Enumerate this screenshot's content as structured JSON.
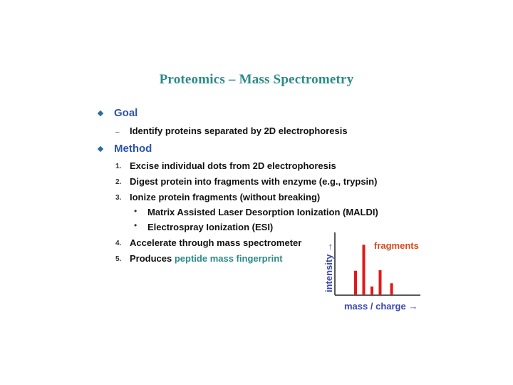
{
  "title": "Proteomics – Mass Spectrometry",
  "goal": {
    "heading": "Goal",
    "marker": "–",
    "item": "Identify proteins separated by 2D electrophoresis"
  },
  "method": {
    "heading": "Method",
    "items": [
      {
        "num": "1.",
        "text": "Excise individual dots from 2D electrophoresis"
      },
      {
        "num": "2.",
        "text": "Digest protein into fragments with enzyme (e.g., trypsin)"
      },
      {
        "num": "3.",
        "text": "Ionize protein fragments (without breaking)"
      },
      {
        "num": "4.",
        "text": "Accelerate through mass spectrometer"
      },
      {
        "num": "5.",
        "text_prefix": "Produces ",
        "text_highlight": "peptide mass fingerprint"
      }
    ],
    "subitems": [
      {
        "bullet": "•",
        "text": "Matrix Assisted Laser Desorption Ionization (MALDI)"
      },
      {
        "bullet": "•",
        "text": "Electrospray Ionization (ESI)"
      }
    ]
  },
  "chart_data": {
    "type": "bar",
    "xlabel": "mass / charge →",
    "ylabel": "intensity →",
    "annotation": "fragments",
    "values": [
      0.45,
      0.93,
      0.16,
      0.46,
      0.22
    ],
    "positions": [
      1,
      2,
      3,
      4,
      5.4
    ],
    "ylim": [
      0,
      1
    ],
    "grid": false,
    "colors": {
      "bars": "#e01a1a",
      "axis_labels": "#3a47b0",
      "annotation": "#d9481c"
    }
  }
}
